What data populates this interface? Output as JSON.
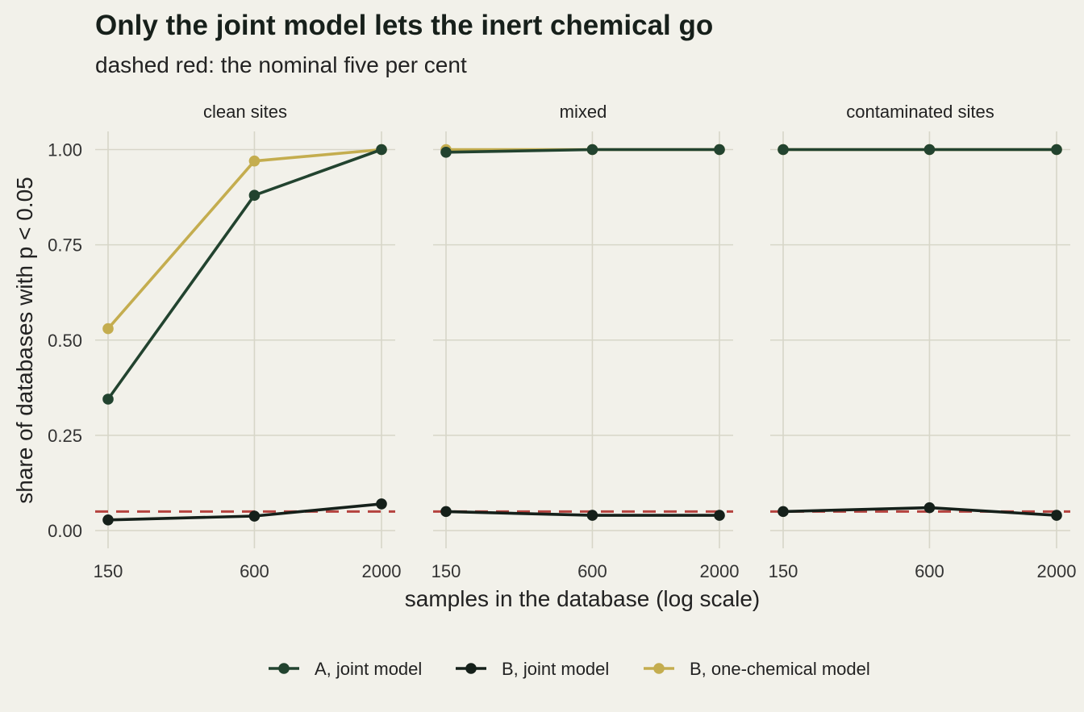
{
  "colors": {
    "background": "#f2f1ea",
    "grid": "#d7d6c8",
    "reference": "#b5433f",
    "series": [
      "#22432f",
      "#15201a",
      "#c4ad4f"
    ]
  },
  "chart_data": {
    "type": "line",
    "title": "Only the joint model lets the inert chemical go",
    "subtitle": "dashed red: the nominal five per cent",
    "xlabel": "samples in the database (log scale)",
    "ylabel": "share of databases with p < 0.05",
    "x_scale": "log",
    "x": [
      150,
      600,
      2000
    ],
    "x_tick_labels": [
      "150",
      "600",
      "2000"
    ],
    "ylim": [
      0,
      1
    ],
    "y_ticks": [
      0,
      0.25,
      0.5,
      0.75,
      1.0
    ],
    "y_tick_labels": [
      "0.00",
      "0.25",
      "0.50",
      "0.75",
      "1.00"
    ],
    "reference_line": {
      "y": 0.05,
      "style": "dashed",
      "color": "#b5433f"
    },
    "grid": true,
    "legend_position": "bottom",
    "panels": [
      {
        "label": "clean sites",
        "series": [
          {
            "name": "A, joint model",
            "values": [
              0.345,
              0.88,
              1.0
            ]
          },
          {
            "name": "B, joint model",
            "values": [
              0.028,
              0.038,
              0.07
            ]
          },
          {
            "name": "B, one-chemical model",
            "values": [
              0.53,
              0.97,
              1.0
            ]
          }
        ]
      },
      {
        "label": "mixed",
        "series": [
          {
            "name": "A, joint model",
            "values": [
              0.993,
              1.0,
              1.0
            ]
          },
          {
            "name": "B, joint model",
            "values": [
              0.05,
              0.04,
              0.04
            ]
          },
          {
            "name": "B, one-chemical model",
            "values": [
              1.0,
              1.0,
              1.0
            ]
          }
        ]
      },
      {
        "label": "contaminated sites",
        "series": [
          {
            "name": "A, joint model",
            "values": [
              1.0,
              1.0,
              1.0
            ]
          },
          {
            "name": "B, joint model",
            "values": [
              0.05,
              0.06,
              0.04
            ]
          },
          {
            "name": "B, one-chemical model",
            "values": [
              1.0,
              1.0,
              1.0
            ]
          }
        ]
      }
    ],
    "legend": [
      "A, joint model",
      "B, joint model",
      "B, one-chemical model"
    ]
  }
}
